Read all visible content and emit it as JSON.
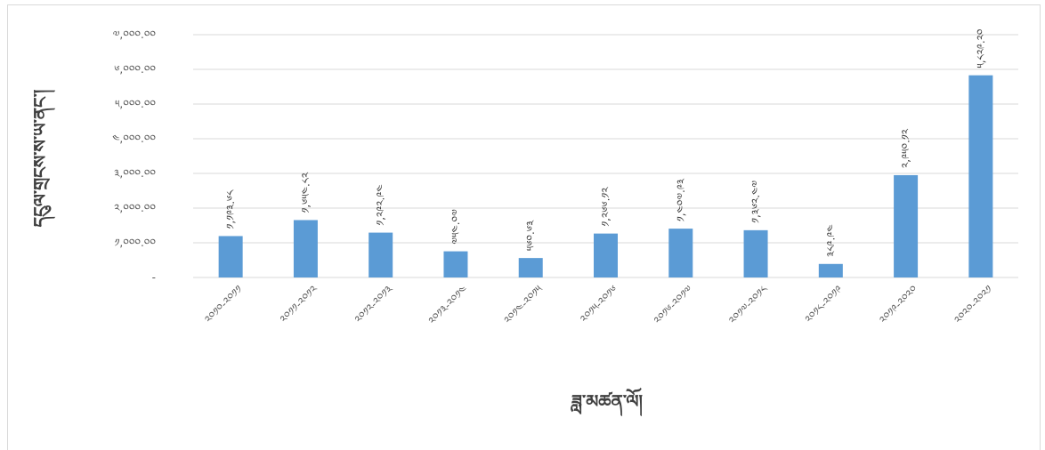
{
  "chart_data": {
    "type": "bar",
    "xlabel": "ཟླ་མཚན་ལོ།",
    "ylabel": "དངུལ་གྲངས་ས་ཡ་ནང་།",
    "ylim": [
      0,
      7000
    ],
    "yticks": [
      0,
      1000,
      2000,
      3000,
      4000,
      5000,
      6000,
      7000
    ],
    "ytick_labels": [
      "-",
      "༡,༠༠༠.༠༠",
      "༢,༠༠༠.༠༠",
      "༣,༠༠༠.༠༠",
      "༤,༠༠༠.༠༠",
      "༥,༠༠༠.༠༠",
      "༦,༠༠༠.༠༠",
      "༧,༠༠༠.༠༠"
    ],
    "categories": [
      "༢༠༡༠-༢༠༡༡",
      "༢༠༡༡-༢༠༡༢",
      "༢༠༡༢-༢༠༡༣",
      "༢༠༡༣-༢༠༡༤",
      "༢༠༡༤-༢༠༡༥",
      "༢༠༡༥-༢༠༡༦",
      "༢༠༡༦-༢༠༡༧",
      "༢༠༡༧-༢༠༡༨",
      "༢༠༡༨-༢༠༡༩",
      "༢༠༡༩-༢༠༢༠",
      "༢༠༢༠-༢༠༢༡"
    ],
    "values": [
      1193.68,
      1654.82,
      1292.94,
      754.07,
      560.63,
      1266.12,
      1407.93,
      1362.47,
      389.94,
      2950.12,
      5829.2
    ],
    "data_labels": [
      "༡,༡༩༣.༦༨",
      "༡,༦༥༤.༨༢",
      "༡,༢༩༢.༩༤",
      "༧༥༤.༠༧",
      "༥༦༠.༦༣",
      "༡,༢༦༦.༡༢",
      "༡,༤༠༧.༩༣",
      "༡,༣༦༢.༤༧",
      "༣༨༩.༩༤",
      "༢,༩༥༠.༡༢",
      "༥,༨༢༩.༢༠"
    ],
    "bar_color": "#5b9bd5",
    "grid": true,
    "legend": "none"
  }
}
